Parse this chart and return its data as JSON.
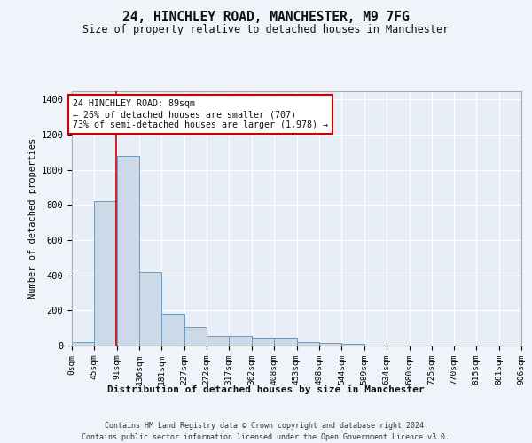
{
  "title1": "24, HINCHLEY ROAD, MANCHESTER, M9 7FG",
  "title2": "Size of property relative to detached houses in Manchester",
  "xlabel": "Distribution of detached houses by size in Manchester",
  "ylabel": "Number of detached properties",
  "footer1": "Contains HM Land Registry data © Crown copyright and database right 2024.",
  "footer2": "Contains public sector information licensed under the Open Government Licence v3.0.",
  "bin_edges": [
    0,
    45,
    91,
    136,
    181,
    227,
    272,
    317,
    362,
    408,
    453,
    498,
    544,
    589,
    634,
    680,
    725,
    770,
    815,
    861,
    906
  ],
  "bar_heights": [
    20,
    820,
    1080,
    420,
    180,
    105,
    55,
    55,
    40,
    40,
    20,
    15,
    10,
    0,
    0,
    0,
    0,
    0,
    0,
    0
  ],
  "bar_color": "#ccd9e8",
  "bar_edge_color": "#7099bb",
  "property_size": 89,
  "property_line_color": "#cc0000",
  "annotation_text": "24 HINCHLEY ROAD: 89sqm\n← 26% of detached houses are smaller (707)\n73% of semi-detached houses are larger (1,978) →",
  "annotation_box_color": "#cc0000",
  "annotation_text_color": "#111111",
  "ylim": [
    0,
    1450
  ],
  "xlim": [
    0,
    906
  ],
  "background_color": "#f0f4fa",
  "plot_bg_color": "#e8eef8",
  "grid_color": "#ffffff",
  "yticks": [
    0,
    200,
    400,
    600,
    800,
    1000,
    1200,
    1400
  ]
}
